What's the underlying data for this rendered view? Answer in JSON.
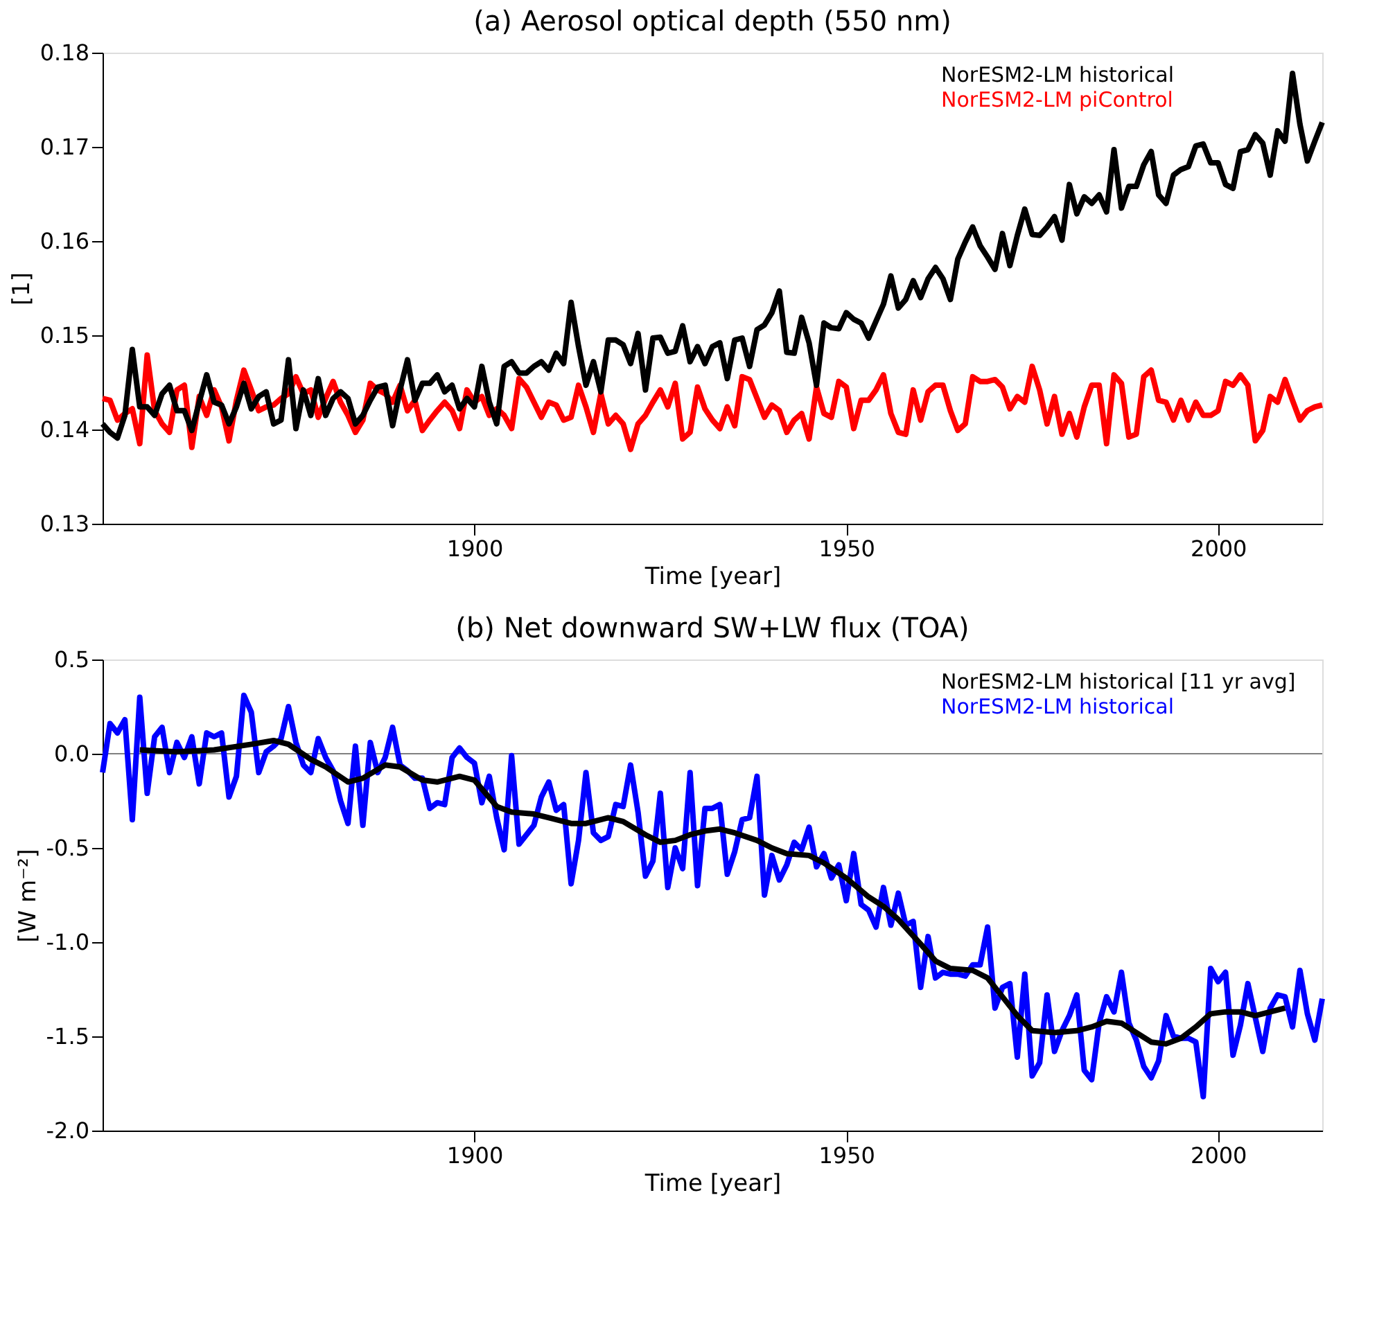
{
  "chart_data": [
    {
      "type": "line",
      "title": "(a) Aerosol optical depth (550 nm)",
      "xlabel": "Time [year]",
      "ylabel": "[1]",
      "x": [
        1850,
        1851,
        1852,
        1853,
        1854,
        1855,
        1856,
        1857,
        1858,
        1859,
        1860,
        1861,
        1862,
        1863,
        1864,
        1865,
        1866,
        1867,
        1868,
        1869,
        1870,
        1871,
        1872,
        1873,
        1874,
        1875,
        1876,
        1877,
        1878,
        1879,
        1880,
        1881,
        1882,
        1883,
        1884,
        1885,
        1886,
        1887,
        1888,
        1889,
        1890,
        1891,
        1892,
        1893,
        1894,
        1895,
        1896,
        1897,
        1898,
        1899,
        1900,
        1901,
        1902,
        1903,
        1904,
        1905,
        1906,
        1907,
        1908,
        1909,
        1910,
        1911,
        1912,
        1913,
        1914,
        1915,
        1916,
        1917,
        1918,
        1919,
        1920,
        1921,
        1922,
        1923,
        1924,
        1925,
        1926,
        1927,
        1928,
        1929,
        1930,
        1931,
        1932,
        1933,
        1934,
        1935,
        1936,
        1937,
        1938,
        1939,
        1940,
        1941,
        1942,
        1943,
        1944,
        1945,
        1946,
        1947,
        1948,
        1949,
        1950,
        1951,
        1952,
        1953,
        1954,
        1955,
        1956,
        1957,
        1958,
        1959,
        1960,
        1961,
        1962,
        1963,
        1964,
        1965,
        1966,
        1967,
        1968,
        1969,
        1970,
        1971,
        1972,
        1973,
        1974,
        1975,
        1976,
        1977,
        1978,
        1979,
        1980,
        1981,
        1982,
        1983,
        1984,
        1985,
        1986,
        1987,
        1988,
        1989,
        1990,
        1991,
        1992,
        1993,
        1994,
        1995,
        1996,
        1997,
        1998,
        1999,
        2000,
        2001,
        2002,
        2003,
        2004,
        2005,
        2006,
        2007,
        2008,
        2009,
        2010,
        2011,
        2012,
        2013,
        2014
      ],
      "series": [
        {
          "name": "NorESM2-LM historical",
          "color": "#000000",
          "values": [
            0.1406,
            0.1397,
            0.1391,
            0.1415,
            0.1485,
            0.1424,
            0.1424,
            0.1415,
            0.1438,
            0.1447,
            0.142,
            0.142,
            0.1399,
            0.1429,
            0.1458,
            0.1429,
            0.1426,
            0.1406,
            0.1424,
            0.1449,
            0.1422,
            0.1435,
            0.144,
            0.1406,
            0.141,
            0.1474,
            0.1401,
            0.1442,
            0.1415,
            0.1454,
            0.1415,
            0.1433,
            0.144,
            0.1433,
            0.1406,
            0.1415,
            0.1431,
            0.1445,
            0.1447,
            0.1404,
            0.1442,
            0.1474,
            0.1431,
            0.1449,
            0.1449,
            0.1458,
            0.144,
            0.1447,
            0.1422,
            0.1433,
            0.1424,
            0.1467,
            0.1429,
            0.1406,
            0.1467,
            0.1472,
            0.146,
            0.146,
            0.1467,
            0.1472,
            0.1463,
            0.1481,
            0.147,
            0.1535,
            0.1488,
            0.1447,
            0.1472,
            0.144,
            0.1495,
            0.1495,
            0.149,
            0.147,
            0.1502,
            0.1442,
            0.1497,
            0.1498,
            0.1481,
            0.1483,
            0.151,
            0.1472,
            0.1488,
            0.147,
            0.1488,
            0.1492,
            0.1454,
            0.1495,
            0.1497,
            0.1467,
            0.1506,
            0.1511,
            0.1524,
            0.1547,
            0.1482,
            0.1481,
            0.1519,
            0.1492,
            0.1447,
            0.1513,
            0.1508,
            0.1507,
            0.1524,
            0.1517,
            0.1513,
            0.1497,
            0.1515,
            0.1533,
            0.1563,
            0.1529,
            0.1538,
            0.1558,
            0.154,
            0.156,
            0.1572,
            0.156,
            0.1538,
            0.1581,
            0.1599,
            0.1615,
            0.1595,
            0.1583,
            0.157,
            0.1608,
            0.1574,
            0.1606,
            0.1634,
            0.1607,
            0.1606,
            0.1615,
            0.1626,
            0.1601,
            0.166,
            0.1629,
            0.1647,
            0.164,
            0.1649,
            0.1631,
            0.1697,
            0.1635,
            0.1658,
            0.1658,
            0.1681,
            0.1695,
            0.1649,
            0.164,
            0.167,
            0.1676,
            0.1679,
            0.1701,
            0.1703,
            0.1683,
            0.1683,
            0.166,
            0.1656,
            0.1695,
            0.1697,
            0.1713,
            0.1704,
            0.167,
            0.1717,
            0.1706,
            0.1778,
            0.1724,
            0.1685,
            0.1706,
            0.1726
          ]
        },
        {
          "name": "NorESM2-LM piControl",
          "color": "#ff0000",
          "values": [
            0.1433,
            0.1431,
            0.141,
            0.1417,
            0.1422,
            0.1385,
            0.1479,
            0.142,
            0.1406,
            0.1397,
            0.1442,
            0.1447,
            0.1381,
            0.1435,
            0.1415,
            0.1442,
            0.1424,
            0.1388,
            0.1431,
            0.1463,
            0.1442,
            0.142,
            0.1424,
            0.1426,
            0.1433,
            0.1438,
            0.1456,
            0.1438,
            0.1442,
            0.1413,
            0.1433,
            0.1451,
            0.1429,
            0.1415,
            0.1397,
            0.141,
            0.1449,
            0.1442,
            0.1438,
            0.1429,
            0.1447,
            0.142,
            0.1431,
            0.1399,
            0.141,
            0.142,
            0.1429,
            0.142,
            0.1401,
            0.1442,
            0.1429,
            0.1435,
            0.1415,
            0.1422,
            0.1415,
            0.1401,
            0.1454,
            0.1445,
            0.1429,
            0.1413,
            0.1429,
            0.1426,
            0.141,
            0.1413,
            0.1447,
            0.1424,
            0.1397,
            0.1438,
            0.1406,
            0.1415,
            0.1406,
            0.1379,
            0.1406,
            0.1415,
            0.1429,
            0.1442,
            0.1424,
            0.1449,
            0.139,
            0.1397,
            0.1445,
            0.1422,
            0.141,
            0.1401,
            0.1424,
            0.1404,
            0.1456,
            0.1453,
            0.1433,
            0.1413,
            0.1426,
            0.142,
            0.1397,
            0.141,
            0.1417,
            0.139,
            0.1445,
            0.1417,
            0.1413,
            0.1451,
            0.1445,
            0.1401,
            0.1431,
            0.1431,
            0.1442,
            0.1458,
            0.1417,
            0.1397,
            0.1395,
            0.1442,
            0.141,
            0.144,
            0.1447,
            0.1447,
            0.142,
            0.1399,
            0.1406,
            0.1456,
            0.1451,
            0.1451,
            0.1453,
            0.1445,
            0.1422,
            0.1435,
            0.1429,
            0.1467,
            0.1442,
            0.1406,
            0.1435,
            0.1395,
            0.1417,
            0.1392,
            0.1424,
            0.1447,
            0.1447,
            0.1385,
            0.1458,
            0.1449,
            0.1392,
            0.1395,
            0.1456,
            0.1463,
            0.1431,
            0.1429,
            0.141,
            0.1431,
            0.141,
            0.1429,
            0.1415,
            0.1415,
            0.142,
            0.1451,
            0.1447,
            0.1458,
            0.1447,
            0.1388,
            0.1399,
            0.1435,
            0.1429,
            0.1453,
            0.1431,
            0.141,
            0.142,
            0.1424,
            0.1426
          ]
        }
      ],
      "xlim": [
        1850,
        2014
      ],
      "xticks": [
        1900,
        1950,
        2000
      ],
      "ylim": [
        0.13,
        0.18
      ],
      "yticks": [
        0.13,
        0.14,
        0.15,
        0.16,
        0.17,
        0.18
      ],
      "legend": "top right",
      "grid": false,
      "line_style": "solid"
    },
    {
      "type": "line",
      "title": "(b) Net downward SW+LW flux (TOA)",
      "xlabel": "Time [year]",
      "ylabel": "[W m⁻²]",
      "x": [
        1850,
        1851,
        1852,
        1853,
        1854,
        1855,
        1856,
        1857,
        1858,
        1859,
        1860,
        1861,
        1862,
        1863,
        1864,
        1865,
        1866,
        1867,
        1868,
        1869,
        1870,
        1871,
        1872,
        1873,
        1874,
        1875,
        1876,
        1877,
        1878,
        1879,
        1880,
        1881,
        1882,
        1883,
        1884,
        1885,
        1886,
        1887,
        1888,
        1889,
        1890,
        1891,
        1892,
        1893,
        1894,
        1895,
        1896,
        1897,
        1898,
        1899,
        1900,
        1901,
        1902,
        1903,
        1904,
        1905,
        1906,
        1907,
        1908,
        1909,
        1910,
        1911,
        1912,
        1913,
        1914,
        1915,
        1916,
        1917,
        1918,
        1919,
        1920,
        1921,
        1922,
        1923,
        1924,
        1925,
        1926,
        1927,
        1928,
        1929,
        1930,
        1931,
        1932,
        1933,
        1934,
        1935,
        1936,
        1937,
        1938,
        1939,
        1940,
        1941,
        1942,
        1943,
        1944,
        1945,
        1946,
        1947,
        1948,
        1949,
        1950,
        1951,
        1952,
        1953,
        1954,
        1955,
        1956,
        1957,
        1958,
        1959,
        1960,
        1961,
        1962,
        1963,
        1964,
        1965,
        1966,
        1967,
        1968,
        1969,
        1970,
        1971,
        1972,
        1973,
        1974,
        1975,
        1976,
        1977,
        1978,
        1979,
        1980,
        1981,
        1982,
        1983,
        1984,
        1985,
        1986,
        1987,
        1988,
        1989,
        1990,
        1991,
        1992,
        1993,
        1994,
        1995,
        1996,
        1997,
        1998,
        1999,
        2000,
        2001,
        2002,
        2003,
        2004,
        2005,
        2006,
        2007,
        2008,
        2009,
        2010,
        2011,
        2012,
        2013,
        2014
      ],
      "series": [
        {
          "name": "NorESM2-LM historical [11 yr avg]",
          "color": "#000000",
          "x": [
            1855,
            1860,
            1865,
            1870,
            1873,
            1875,
            1878,
            1880,
            1883,
            1885,
            1888,
            1890,
            1893,
            1895,
            1898,
            1900,
            1903,
            1905,
            1908,
            1910,
            1913,
            1915,
            1918,
            1920,
            1923,
            1925,
            1927,
            1929,
            1931,
            1933,
            1935,
            1938,
            1940,
            1942,
            1945,
            1947,
            1950,
            1953,
            1955,
            1957,
            1960,
            1962,
            1964,
            1967,
            1969,
            1971,
            1973,
            1975,
            1978,
            1981,
            1983,
            1985,
            1987,
            1989,
            1991,
            1993,
            1995,
            1997,
            1999,
            2001,
            2003,
            2005,
            2007,
            2009
          ],
          "values": [
            0.02,
            0.01,
            0.02,
            0.05,
            0.07,
            0.05,
            -0.03,
            -0.07,
            -0.15,
            -0.13,
            -0.06,
            -0.07,
            -0.14,
            -0.15,
            -0.12,
            -0.14,
            -0.28,
            -0.31,
            -0.32,
            -0.34,
            -0.37,
            -0.37,
            -0.34,
            -0.36,
            -0.43,
            -0.47,
            -0.46,
            -0.43,
            -0.41,
            -0.4,
            -0.42,
            -0.46,
            -0.5,
            -0.53,
            -0.54,
            -0.58,
            -0.66,
            -0.76,
            -0.81,
            -0.88,
            -1.01,
            -1.1,
            -1.14,
            -1.15,
            -1.19,
            -1.29,
            -1.39,
            -1.47,
            -1.48,
            -1.47,
            -1.45,
            -1.42,
            -1.43,
            -1.48,
            -1.53,
            -1.54,
            -1.51,
            -1.45,
            -1.38,
            -1.37,
            -1.37,
            -1.39,
            -1.37,
            -1.35
          ]
        },
        {
          "name": "NorESM2-LM historical",
          "color": "#0000ff",
          "values": [
            -0.1,
            0.16,
            0.11,
            0.18,
            -0.35,
            0.3,
            -0.21,
            0.09,
            0.14,
            -0.1,
            0.06,
            -0.02,
            0.09,
            -0.16,
            0.11,
            0.09,
            0.11,
            -0.23,
            -0.12,
            0.31,
            0.22,
            -0.1,
            0.01,
            0.04,
            0.08,
            0.25,
            0.06,
            -0.06,
            -0.1,
            0.08,
            -0.02,
            -0.09,
            -0.25,
            -0.37,
            0.04,
            -0.38,
            0.06,
            -0.1,
            -0.02,
            0.14,
            -0.06,
            -0.09,
            -0.13,
            -0.13,
            -0.29,
            -0.26,
            -0.27,
            -0.02,
            0.03,
            -0.02,
            -0.05,
            -0.26,
            -0.12,
            -0.34,
            -0.51,
            -0.01,
            -0.48,
            -0.43,
            -0.38,
            -0.23,
            -0.15,
            -0.3,
            -0.27,
            -0.69,
            -0.46,
            -0.1,
            -0.42,
            -0.46,
            -0.44,
            -0.27,
            -0.28,
            -0.06,
            -0.31,
            -0.65,
            -0.57,
            -0.21,
            -0.71,
            -0.5,
            -0.61,
            -0.1,
            -0.7,
            -0.29,
            -0.29,
            -0.27,
            -0.64,
            -0.52,
            -0.35,
            -0.34,
            -0.12,
            -0.75,
            -0.54,
            -0.67,
            -0.59,
            -0.47,
            -0.51,
            -0.39,
            -0.6,
            -0.53,
            -0.66,
            -0.59,
            -0.78,
            -0.53,
            -0.8,
            -0.83,
            -0.92,
            -0.71,
            -0.91,
            -0.74,
            -0.91,
            -0.89,
            -1.24,
            -0.97,
            -1.19,
            -1.16,
            -1.17,
            -1.17,
            -1.18,
            -1.12,
            -1.12,
            -0.92,
            -1.35,
            -1.24,
            -1.22,
            -1.61,
            -1.17,
            -1.71,
            -1.64,
            -1.28,
            -1.58,
            -1.47,
            -1.39,
            -1.28,
            -1.68,
            -1.73,
            -1.43,
            -1.29,
            -1.37,
            -1.16,
            -1.43,
            -1.52,
            -1.66,
            -1.72,
            -1.63,
            -1.39,
            -1.5,
            -1.51,
            -1.51,
            -1.53,
            -1.82,
            -1.14,
            -1.21,
            -1.16,
            -1.6,
            -1.44,
            -1.22,
            -1.4,
            -1.58,
            -1.35,
            -1.28,
            -1.29,
            -1.45,
            -1.15,
            -1.38,
            -1.52,
            -1.3
          ]
        }
      ],
      "xlim": [
        1850,
        2014
      ],
      "xticks": [
        1900,
        1950,
        2000
      ],
      "ylim": [
        -2.0,
        0.5
      ],
      "yticks": [
        {
          "value": -2.0,
          "label": "-2.0"
        },
        -1.5,
        {
          "value": -1.0,
          "label": "-1.0"
        },
        -0.5,
        {
          "value": 0,
          "label": "0.0"
        },
        0.5
      ],
      "ref_lines": [
        {
          "axis": "y",
          "value": 0,
          "color": "#808080"
        }
      ],
      "legend": "top right",
      "grid": false,
      "line_style": "solid"
    }
  ]
}
